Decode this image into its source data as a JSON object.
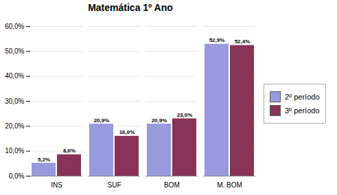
{
  "chart_data": {
    "type": "bar",
    "title": "Matemática 1º Ano",
    "categories": [
      "INS",
      "SUF",
      "BOM",
      "M. BOM"
    ],
    "series": [
      {
        "name": "2º período",
        "color": "#9999dd",
        "values": [
          5.2,
          20.9,
          20.9,
          52.9
        ],
        "value_labels": [
          "5,2%",
          "20,9%",
          "20,9%",
          "52,9%"
        ]
      },
      {
        "name": "3º período",
        "color": "#883355",
        "values": [
          8.6,
          16.0,
          23.0,
          52.4
        ],
        "value_labels": [
          "8,6%",
          "16,0%",
          "23,0%",
          "52,4%"
        ]
      }
    ],
    "ylim": [
      0,
      60
    ],
    "yticks": [
      {
        "value": 0,
        "label": "0,0%"
      },
      {
        "value": 10,
        "label": "10,0%"
      },
      {
        "value": 20,
        "label": "20,0%"
      },
      {
        "value": 30,
        "label": "30,0%"
      },
      {
        "value": 40,
        "label": "40,0%"
      },
      {
        "value": 50,
        "label": "50,0%"
      },
      {
        "value": 60,
        "label": "60,0%"
      }
    ],
    "grid": true,
    "data_labels": true,
    "legend": "right"
  }
}
